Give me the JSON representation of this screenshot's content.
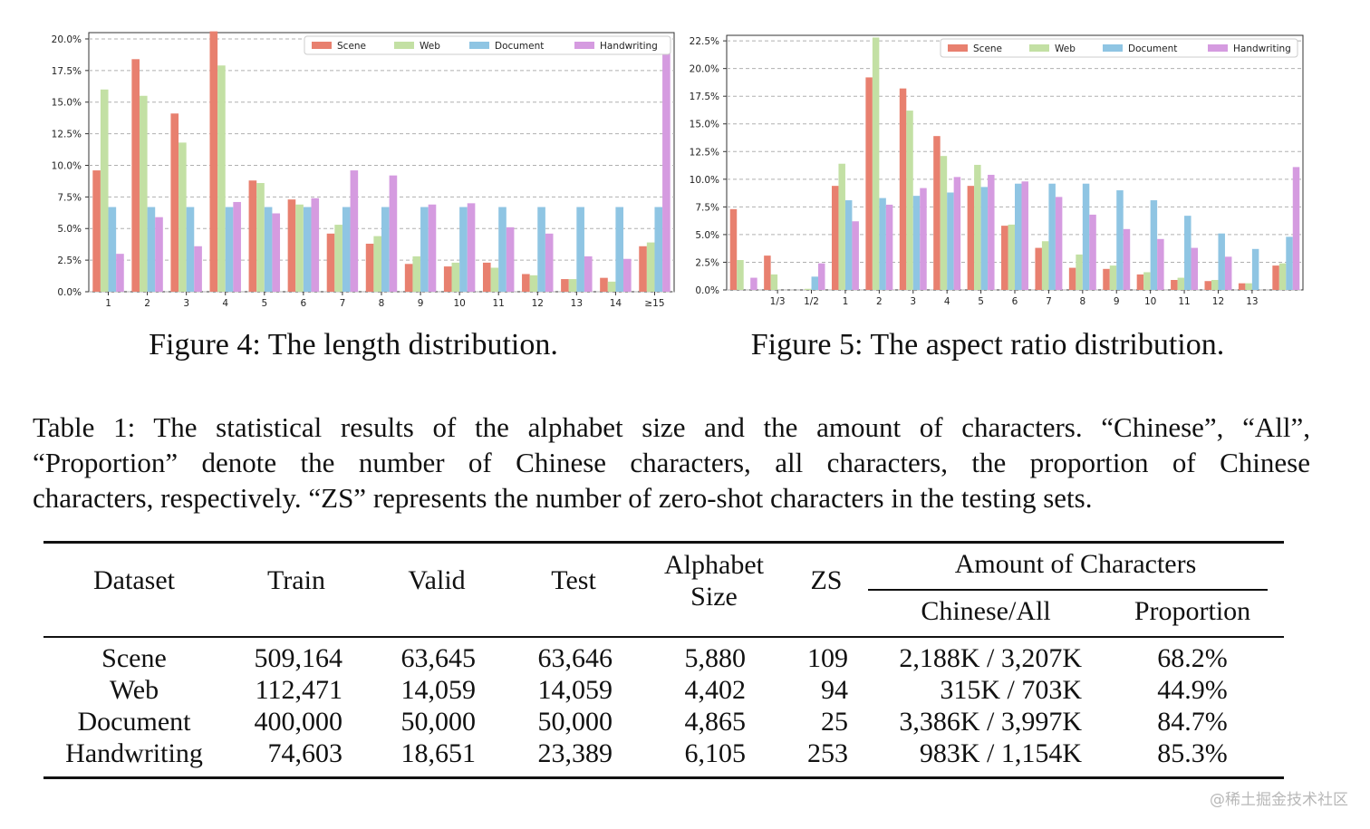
{
  "legend_colors": {
    "Scene": "#e8806f",
    "Web": "#c3e0a4",
    "Document": "#8fc5e3",
    "Handwriting": "#d59be0"
  },
  "chart_data": [
    {
      "type": "bar",
      "id": "length",
      "categories": [
        "1",
        "2",
        "3",
        "4",
        "5",
        "6",
        "7",
        "8",
        "9",
        "10",
        "11",
        "12",
        "13",
        "14",
        "≥15"
      ],
      "ylim": [
        0,
        20.5
      ],
      "yticks": [
        "0.0%",
        "2.5%",
        "5.0%",
        "7.5%",
        "10.0%",
        "12.5%",
        "15.0%",
        "17.5%",
        "20.0%"
      ],
      "ytick_values": [
        0,
        2.5,
        5,
        7.5,
        10,
        12.5,
        15,
        17.5,
        20
      ],
      "grid": true,
      "legend": "top-right",
      "series": [
        {
          "name": "Scene",
          "values": [
            9.6,
            18.4,
            14.1,
            20.6,
            8.8,
            7.3,
            4.6,
            3.8,
            2.2,
            2.0,
            2.3,
            1.4,
            1.0,
            1.1,
            3.6
          ]
        },
        {
          "name": "Web",
          "values": [
            16.0,
            15.5,
            11.8,
            17.9,
            8.6,
            6.9,
            5.3,
            4.4,
            2.8,
            2.3,
            1.9,
            1.3,
            1.0,
            0.8,
            3.9
          ]
        },
        {
          "name": "Document",
          "values": [
            6.7,
            6.7,
            6.7,
            6.7,
            6.7,
            6.7,
            6.7,
            6.7,
            6.7,
            6.7,
            6.7,
            6.7,
            6.7,
            6.7,
            6.7
          ]
        },
        {
          "name": "Handwriting",
          "values": [
            3.0,
            5.9,
            3.6,
            7.1,
            6.2,
            7.4,
            9.6,
            9.2,
            6.9,
            7.0,
            5.1,
            4.6,
            2.8,
            2.6,
            19.6
          ]
        }
      ]
    },
    {
      "type": "bar",
      "id": "aspect",
      "categories": [
        "",
        "1/3",
        "1/2",
        "1",
        "2",
        "3",
        "4",
        "5",
        "6",
        "7",
        "8",
        "9",
        "10",
        "11",
        "12",
        "13",
        ""
      ],
      "ylim": [
        0,
        23.0
      ],
      "yticks": [
        "0.0%",
        "2.5%",
        "5.0%",
        "7.5%",
        "10.0%",
        "12.5%",
        "15.0%",
        "17.5%",
        "20.0%",
        "22.5%"
      ],
      "ytick_values": [
        0,
        2.5,
        5,
        7.5,
        10,
        12.5,
        15,
        17.5,
        20,
        22.5
      ],
      "grid": true,
      "legend": "top-right",
      "series": [
        {
          "name": "Scene",
          "values": [
            7.3,
            3.1,
            0,
            9.4,
            19.2,
            18.2,
            13.9,
            9.4,
            5.8,
            3.8,
            2.0,
            1.9,
            1.4,
            0.9,
            0.8,
            0.6,
            2.2
          ]
        },
        {
          "name": "Web",
          "values": [
            2.7,
            1.4,
            0.1,
            11.4,
            22.8,
            16.2,
            12.1,
            11.3,
            5.9,
            4.4,
            3.2,
            2.2,
            1.6,
            1.1,
            0.9,
            0.6,
            2.4
          ]
        },
        {
          "name": "Document",
          "values": [
            0,
            0,
            1.2,
            8.1,
            8.3,
            8.5,
            8.8,
            9.3,
            9.6,
            9.6,
            9.6,
            9.0,
            8.1,
            6.7,
            5.1,
            3.7,
            4.8
          ]
        },
        {
          "name": "Handwriting",
          "values": [
            1.1,
            0,
            2.4,
            6.2,
            7.7,
            9.2,
            10.2,
            10.4,
            9.8,
            8.4,
            6.8,
            5.5,
            4.6,
            3.8,
            3.0,
            0,
            11.1
          ]
        }
      ]
    }
  ],
  "figure4_caption": "Figure 4: The length distribution.",
  "figure5_caption": "Figure 5: The aspect ratio distribution.",
  "table_caption": {
    "line1": "Table 1: The statistical results of the alphabet size and the amount of characters. “Chinese”, “All”,",
    "line2": "“Proportion” denote the number of Chinese characters, all characters, the proportion of Chinese",
    "line3": "characters, respectively. “ZS” represents the number of zero-shot characters in the testing sets."
  },
  "table": {
    "headers": {
      "dataset": "Dataset",
      "train": "Train",
      "valid": "Valid",
      "test": "Test",
      "alphabet_line1": "Alphabet",
      "alphabet_line2": "Size",
      "zs": "ZS",
      "amount": "Amount of Characters",
      "chinese_all": "Chinese/All",
      "proportion": "Proportion"
    },
    "rows": [
      {
        "dataset": "Scene",
        "train": "509,164",
        "valid": "63,645",
        "test": "63,646",
        "alphabet": "5,880",
        "zs": "109",
        "chinese_all": "2,188K / 3,207K",
        "proportion": "68.2%"
      },
      {
        "dataset": "Web",
        "train": "112,471",
        "valid": "14,059",
        "test": "14,059",
        "alphabet": "4,402",
        "zs": "94",
        "chinese_all": "315K / 703K",
        "proportion": "44.9%"
      },
      {
        "dataset": "Document",
        "train": "400,000",
        "valid": "50,000",
        "test": "50,000",
        "alphabet": "4,865",
        "zs": "25",
        "chinese_all": "3,386K / 3,997K",
        "proportion": "84.7%"
      },
      {
        "dataset": "Handwriting",
        "train": "74,603",
        "valid": "18,651",
        "test": "23,389",
        "alphabet": "6,105",
        "zs": "253",
        "chinese_all": "983K / 1,154K",
        "proportion": "85.3%"
      }
    ]
  },
  "watermark": "@稀土掘金技术社区"
}
